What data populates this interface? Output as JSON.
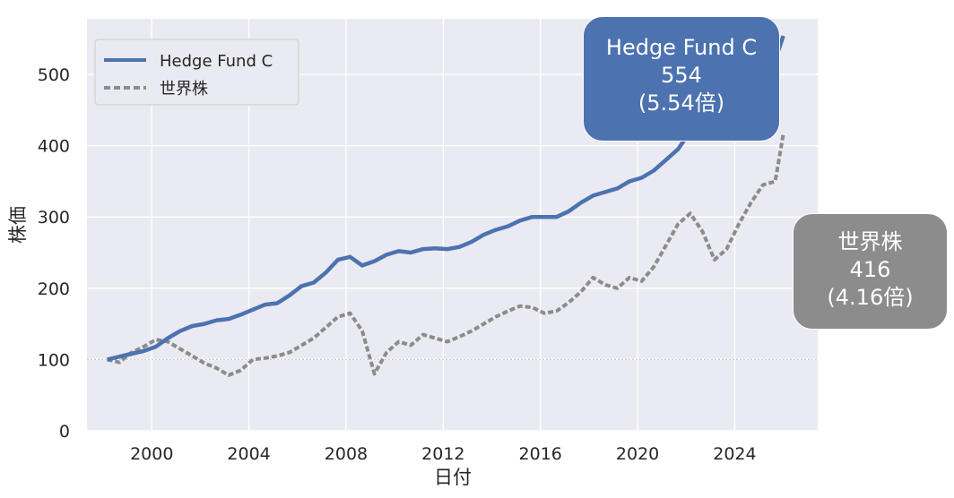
{
  "chart_data": {
    "type": "line",
    "xlabel": "日付",
    "ylabel": "株価",
    "x_ticks": [
      "2000",
      "2004",
      "2008",
      "2012",
      "2016",
      "2020",
      "2024"
    ],
    "y_ticks": [
      "0",
      "100",
      "200",
      "300",
      "400",
      "500"
    ],
    "xlim": [
      "1997-05",
      "2027-06"
    ],
    "ylim": [
      0,
      578
    ],
    "reference_line": 100,
    "grid": true,
    "legend_placement": "top-left",
    "x": [
      "1998-03",
      "1998-09",
      "1999-03",
      "1999-09",
      "2000-03",
      "2000-09",
      "2001-03",
      "2001-09",
      "2002-03",
      "2002-09",
      "2003-03",
      "2003-09",
      "2004-03",
      "2004-09",
      "2005-03",
      "2005-09",
      "2006-03",
      "2006-09",
      "2007-03",
      "2007-09",
      "2008-03",
      "2008-09",
      "2009-03",
      "2009-09",
      "2010-03",
      "2010-09",
      "2011-03",
      "2011-09",
      "2012-03",
      "2012-09",
      "2013-03",
      "2013-09",
      "2014-03",
      "2014-09",
      "2015-03",
      "2015-09",
      "2016-03",
      "2016-09",
      "2017-03",
      "2017-09",
      "2018-03",
      "2018-09",
      "2019-03",
      "2019-09",
      "2020-03",
      "2020-09",
      "2021-03",
      "2021-09",
      "2022-03",
      "2022-09",
      "2023-03",
      "2023-09",
      "2024-03",
      "2024-09",
      "2025-03",
      "2025-09",
      "2026-01"
    ],
    "series": [
      {
        "name": "Hedge Fund C",
        "color": "#4c72b0",
        "style": "solid",
        "values": [
          100,
          104,
          108,
          112,
          118,
          130,
          140,
          147,
          150,
          155,
          157,
          163,
          170,
          177,
          179,
          190,
          203,
          208,
          222,
          240,
          244,
          232,
          238,
          247,
          252,
          250,
          255,
          256,
          255,
          258,
          265,
          275,
          282,
          287,
          295,
          300,
          300,
          300,
          308,
          320,
          330,
          335,
          340,
          350,
          355,
          365,
          380,
          395,
          420,
          430,
          450,
          455,
          470,
          480,
          495,
          520,
          554
        ]
      },
      {
        "name": "世界株",
        "color": "#8c8c8c",
        "style": "dashed",
        "values": [
          100,
          96,
          110,
          118,
          128,
          125,
          115,
          105,
          95,
          88,
          78,
          85,
          100,
          102,
          105,
          110,
          120,
          130,
          145,
          160,
          165,
          140,
          80,
          110,
          125,
          120,
          135,
          130,
          125,
          132,
          140,
          150,
          160,
          168,
          175,
          173,
          165,
          168,
          180,
          195,
          215,
          205,
          200,
          215,
          210,
          230,
          260,
          290,
          305,
          280,
          240,
          255,
          290,
          320,
          345,
          350,
          416
        ]
      }
    ]
  },
  "legend": [
    {
      "label": "Hedge Fund C",
      "color": "#4c72b0",
      "style": "solid"
    },
    {
      "label": "世界株",
      "color": "#8c8c8c",
      "style": "dashed"
    }
  ],
  "callouts": {
    "a": {
      "name": "Hedge Fund C",
      "value": "554",
      "ratio": "(5.54倍)",
      "color": "#4c72b0"
    },
    "b": {
      "name": "世界株",
      "value": "416",
      "ratio": "(4.16倍)",
      "color": "#8c8c8c"
    }
  },
  "colors": {
    "plot_bg": "#eaeaf2",
    "grid": "#ffffff"
  }
}
